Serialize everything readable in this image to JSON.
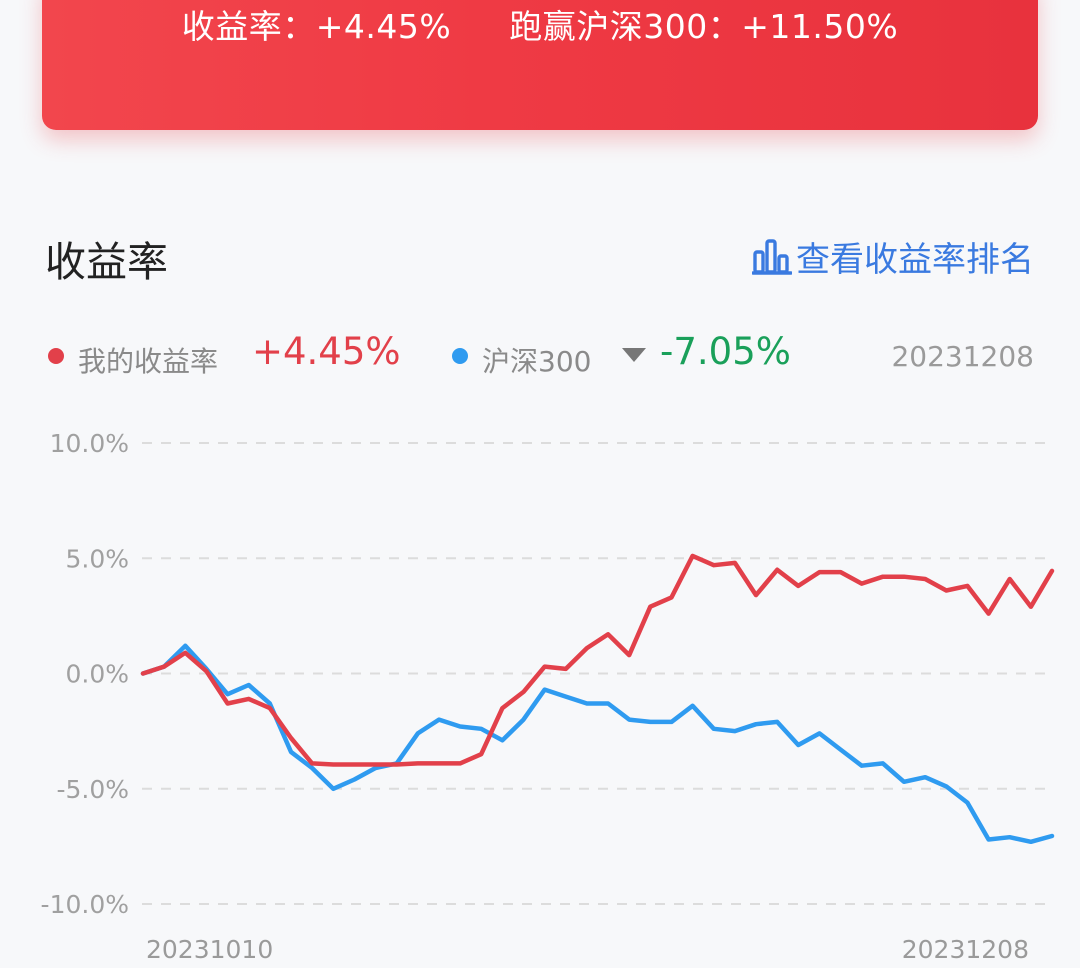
{
  "banner": {
    "return_label": "收益率：",
    "return_value": "+4.45%",
    "beat_label": "跑赢沪深300：",
    "beat_value": "+11.50%"
  },
  "section": {
    "title": "收益率",
    "rank_link": "查看收益率排名",
    "rank_icon": "bar-chart-icon"
  },
  "legend": {
    "mine_label": "我的收益率",
    "mine_value": "+4.45%",
    "mine_color": "#e2404a",
    "index_label": "沪深300",
    "index_value": "-7.05%",
    "index_color": "#2f9bf0",
    "index_value_color": "#1aa05a",
    "date": "20231208"
  },
  "chart_data": {
    "type": "line",
    "x_start_label": "20231010",
    "x_end_label": "20231208",
    "y_ticks": [
      "10.0%",
      "5.0%",
      "0.0%",
      "-5.0%",
      "-10.0%"
    ],
    "ylim": [
      -10,
      10
    ],
    "grid": true,
    "series": [
      {
        "name": "我的收益率",
        "color": "#e2404a",
        "values": [
          0.0,
          0.3,
          0.9,
          0.1,
          -1.3,
          -1.1,
          -1.5,
          -2.8,
          -3.9,
          -3.95,
          -3.95,
          -3.95,
          -3.95,
          -3.9,
          -3.9,
          -3.9,
          -3.5,
          -1.5,
          -0.8,
          0.3,
          0.2,
          1.1,
          1.7,
          0.8,
          2.9,
          3.3,
          5.1,
          4.7,
          4.8,
          3.4,
          4.5,
          3.8,
          4.4,
          4.4,
          3.9,
          4.2,
          4.2,
          4.1,
          3.6,
          3.8,
          2.6,
          4.1,
          2.9,
          4.45
        ]
      },
      {
        "name": "沪深300",
        "color": "#2f9bf0",
        "values": [
          0.0,
          0.3,
          1.2,
          0.2,
          -0.9,
          -0.5,
          -1.3,
          -3.4,
          -4.1,
          -5.0,
          -4.6,
          -4.1,
          -3.9,
          -2.6,
          -2.0,
          -2.3,
          -2.4,
          -2.9,
          -2.0,
          -0.7,
          -1.0,
          -1.3,
          -1.3,
          -2.0,
          -2.1,
          -2.1,
          -1.4,
          -2.4,
          -2.5,
          -2.2,
          -2.1,
          -3.1,
          -2.6,
          -3.3,
          -4.0,
          -3.9,
          -4.7,
          -4.5,
          -4.9,
          -5.6,
          -7.2,
          -7.1,
          -7.3,
          -7.05
        ]
      }
    ]
  }
}
